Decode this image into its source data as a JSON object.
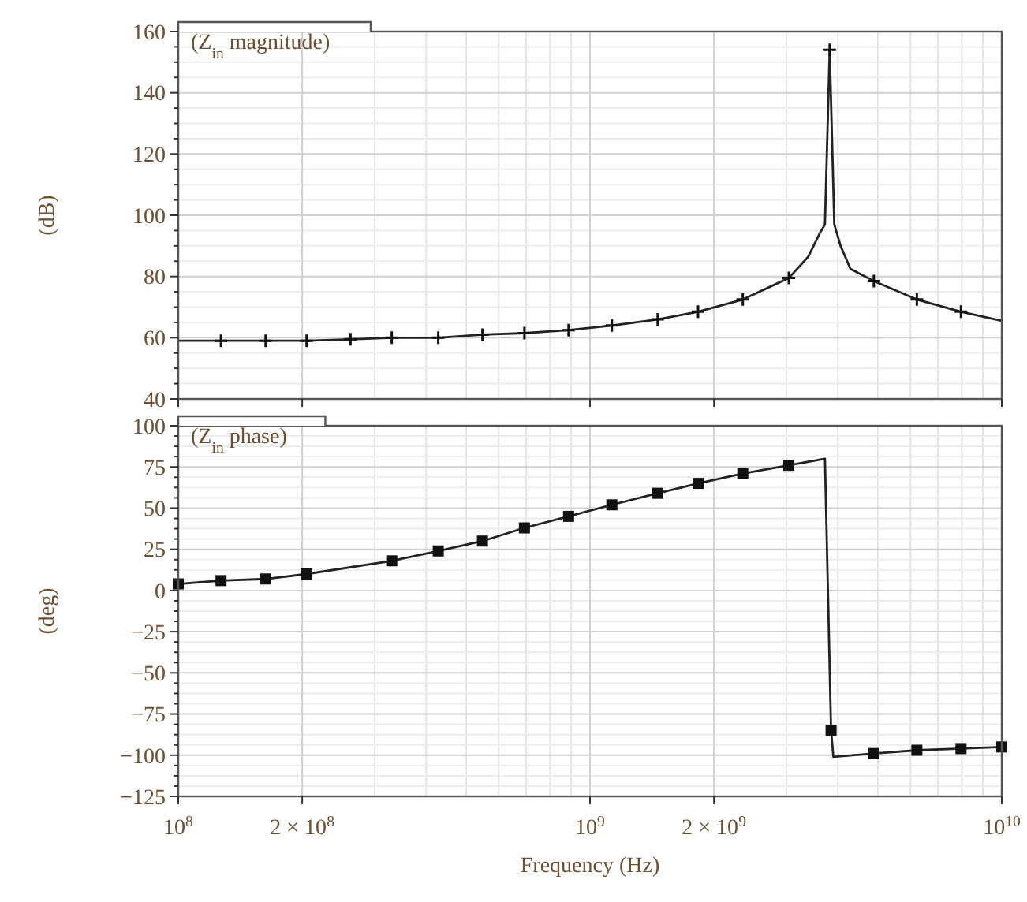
{
  "chart_data": [
    {
      "type": "line",
      "title": "(Z$_{in}$ magnitude)",
      "ylabel": "(dB)",
      "log": "x",
      "grid": true,
      "tick_labels": "y",
      "xlim": [
        100000000,
        10000000000
      ],
      "ylim": [
        40,
        160
      ],
      "yticks": [
        40,
        60,
        80,
        100,
        120,
        140,
        160
      ],
      "xticks": [
        {
          "value": 100000000,
          "label": null
        },
        {
          "value": 200000000,
          "label": null
        },
        {
          "value": 1000000000,
          "label": null
        },
        {
          "value": 2000000000,
          "label": null
        },
        {
          "value": 10000000000,
          "label": null
        }
      ],
      "series": [
        {
          "color": "#222222",
          "line_style": "solid",
          "x": [
            100000000,
            127000000,
            163000000,
            205000000,
            262000000,
            330000000,
            428000000,
            548000000,
            693000000,
            887000000,
            1130000000,
            1460000000,
            1830000000,
            2350000000,
            3040000000,
            3390000000,
            3610000000,
            3720000000,
            3820000000,
            3920000000,
            4060000000,
            4290000000,
            4890000000,
            6220000000,
            7960000000,
            10000000000
          ],
          "values": [
            59,
            59,
            59,
            59,
            59.5,
            60,
            60,
            61,
            61.5,
            62.5,
            64,
            66,
            68.5,
            72.5,
            79.5,
            86.5,
            94,
            97,
            154,
            97,
            90,
            82.5,
            78.5,
            72.5,
            68.5,
            65.5
          ]
        },
        {
          "type": "scatter",
          "color": "#111111",
          "marker": "cross",
          "x": [
            127000000,
            163000000,
            205000000,
            262000000,
            330000000,
            428000000,
            548000000,
            693000000,
            887000000,
            1130000000,
            1460000000,
            1830000000,
            2350000000,
            3040000000,
            3820000000,
            4890000000,
            6220000000,
            7960000000
          ],
          "values": [
            59,
            59,
            59,
            59.5,
            60,
            60,
            61,
            61.5,
            62.5,
            64,
            66,
            68.5,
            72.5,
            79.5,
            154,
            78.5,
            72.5,
            68.5
          ]
        }
      ]
    },
    {
      "type": "line",
      "title": "(Z$_{in}$ phase)",
      "ylabel": "(deg)",
      "xlabel": "Frequency (Hz)",
      "log": "x",
      "grid": true,
      "xlim": [
        100000000,
        10000000000
      ],
      "ylim": [
        -125,
        100
      ],
      "yticks": [
        -125,
        -100,
        -75,
        -50,
        -25,
        0,
        25,
        50,
        75,
        100
      ],
      "xticks": [
        {
          "value": 100000000,
          "label": "10$^{8}$"
        },
        {
          "value": 200000000,
          "label": "2 × 10$^{8}$"
        },
        {
          "value": 1000000000,
          "label": "10$^{9}$"
        },
        {
          "value": 2000000000,
          "label": "2 × 10$^{9}$"
        },
        {
          "value": 10000000000,
          "label": "10$^{10}$"
        }
      ],
      "series": [
        {
          "color": "#222222",
          "line_style": "solid",
          "x": [
            100000000,
            127000000,
            163000000,
            205000000,
            330000000,
            428000000,
            548000000,
            693000000,
            887000000,
            1130000000,
            1460000000,
            1830000000,
            2350000000,
            3040000000,
            3720000000,
            3850000000,
            3900000000,
            4890000000,
            6220000000,
            7960000000,
            10000000000
          ],
          "values": [
            4,
            6,
            7,
            10,
            18,
            24,
            30,
            38,
            45,
            52,
            59,
            65,
            71,
            76,
            80,
            -85,
            -101,
            -99,
            -97,
            -96,
            -95
          ]
        },
        {
          "type": "scatter",
          "color": "#111111",
          "marker": "square",
          "x": [
            100000000,
            127000000,
            163000000,
            205000000,
            330000000,
            428000000,
            548000000,
            693000000,
            887000000,
            1130000000,
            1460000000,
            1830000000,
            2350000000,
            3040000000,
            3850000000,
            4890000000,
            6220000000,
            7960000000,
            10000000000
          ],
          "values": [
            4,
            6,
            7,
            10,
            18,
            24,
            30,
            38,
            45,
            52,
            59,
            65,
            71,
            76,
            -85,
            -99,
            -97,
            -96,
            -95
          ]
        }
      ]
    }
  ]
}
